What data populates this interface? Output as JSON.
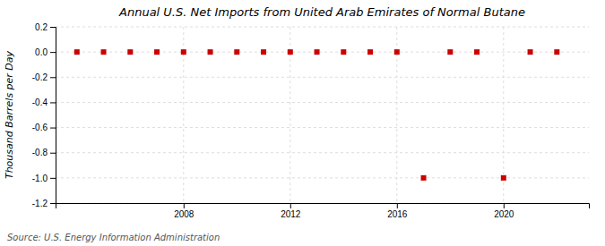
{
  "chart_data": {
    "type": "scatter",
    "title": "Annual U.S. Net Imports from United Arab Emirates of Normal Butane",
    "y_label": "Thousand Barrels per Day",
    "annotations": [
      "Source: U.S. Energy Information Administration"
    ],
    "x": [
      2004,
      2005,
      2006,
      2007,
      2008,
      2009,
      2010,
      2011,
      2012,
      2013,
      2014,
      2015,
      2016,
      2017,
      2018,
      2019,
      2020,
      2021,
      2022
    ],
    "values": [
      0,
      0,
      0,
      0,
      0,
      0,
      0,
      0,
      0,
      0,
      0,
      0,
      0,
      -1,
      0,
      0,
      -1,
      0,
      0
    ],
    "color": "#cc0000",
    "marker": "square",
    "xlim": [
      2003.2,
      2023.2
    ],
    "ylim": [
      -1.2,
      0.2
    ],
    "xticks": [
      2008,
      2012,
      2016,
      2020
    ],
    "yticks": [
      0.2,
      {
        "value": 0.0,
        "label": "0.0"
      },
      -0.2,
      -0.4,
      -0.6,
      -0.8,
      {
        "value": -1.0,
        "label": "-1.0"
      },
      -1.2
    ],
    "grid": true
  }
}
